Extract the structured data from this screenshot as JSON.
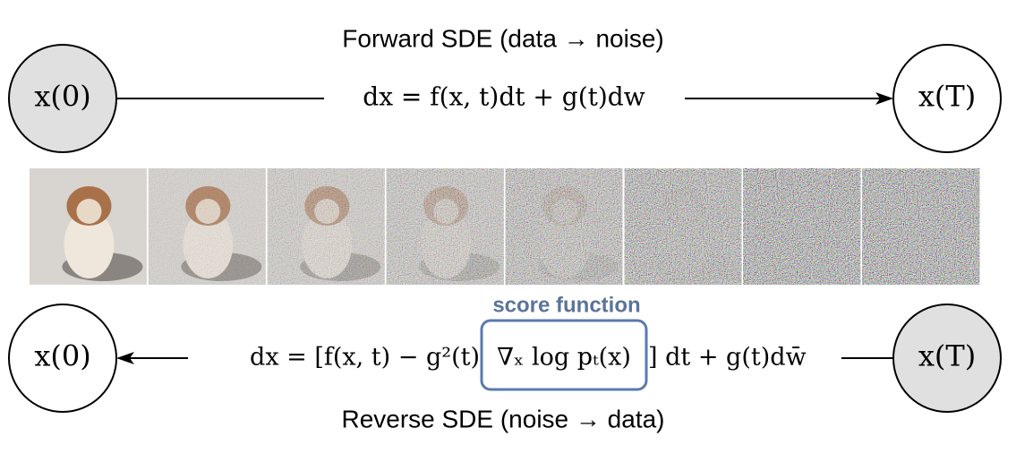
{
  "forward": {
    "title": "Forward SDE (data → noise)",
    "equation": "dx = f(x, t)dt + g(t)dw"
  },
  "reverse": {
    "title": "Reverse SDE (noise → data)",
    "equation_left": "dx = [f(x, t) − g²(t)",
    "equation_score": "∇ₓ log pₜ(x)",
    "equation_right": "] dt + g(t)dw̄"
  },
  "score_label": "score function",
  "nodes": [
    {
      "label": "x(0)"
    },
    {
      "label": "x(T)"
    },
    {
      "label": "x(0)"
    },
    {
      "label": "x(T)"
    }
  ]
}
